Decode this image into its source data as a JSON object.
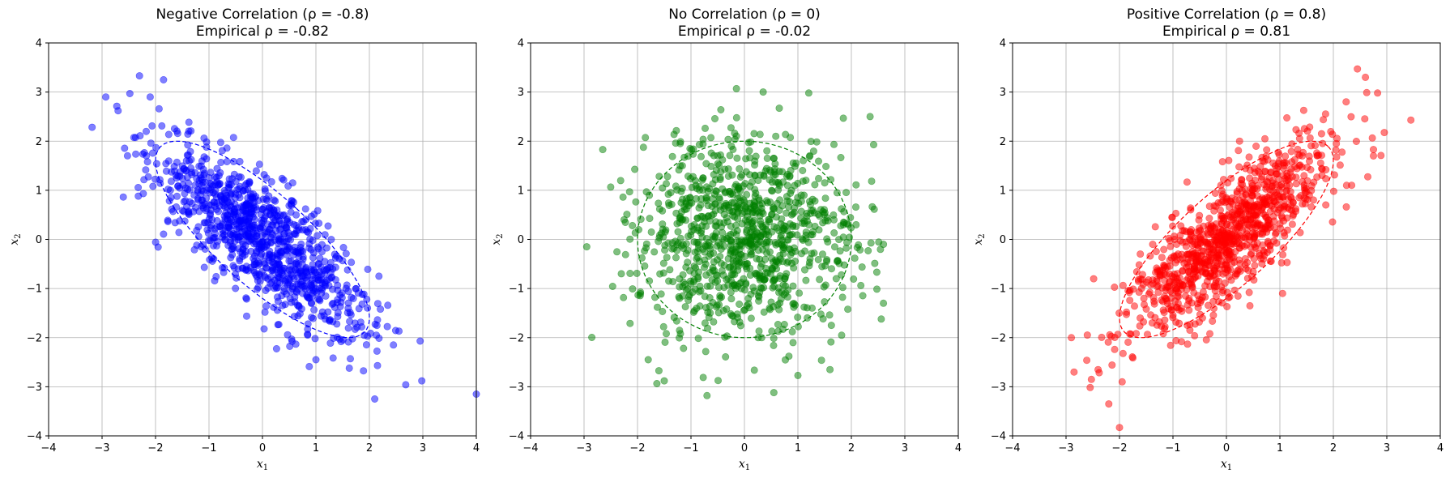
{
  "chart_data": [
    {
      "type": "scatter",
      "title": "Negative Correlation (ρ = -0.8)",
      "subtitle": "Empirical ρ = -0.82",
      "xlabel": "x1",
      "ylabel": "x2",
      "xlim": [
        -4,
        4
      ],
      "ylim": [
        -4,
        4
      ],
      "xticks": [
        "−4",
        "−3",
        "−2",
        "−1",
        "0",
        "1",
        "2",
        "3",
        "4"
      ],
      "yticks": [
        "−4",
        "−3",
        "−2",
        "−1",
        "0",
        "1",
        "2",
        "3",
        "4"
      ],
      "grid": true,
      "color": "#0000ff",
      "rho": -0.8,
      "n_points": 1000,
      "ellipse": {
        "rho": -0.8,
        "style": "dashed",
        "n_std": 2
      },
      "outliers": [
        [
          -2.3,
          3.33
        ],
        [
          -1.85,
          3.25
        ],
        [
          -2.1,
          2.9
        ],
        [
          -2.7,
          2.62
        ],
        [
          -2.15,
          1.58
        ],
        [
          2.95,
          -2.07
        ],
        [
          2.98,
          -2.88
        ],
        [
          2.68,
          -2.96
        ],
        [
          2.1,
          -3.25
        ],
        [
          4.0,
          -3.15
        ],
        [
          2.45,
          -2.15
        ],
        [
          1.0,
          -2.45
        ]
      ]
    },
    {
      "type": "scatter",
      "title": "No Correlation (ρ = 0)",
      "subtitle": "Empirical ρ = -0.02",
      "xlabel": "x1",
      "ylabel": "x2",
      "xlim": [
        -4,
        4
      ],
      "ylim": [
        -4,
        4
      ],
      "xticks": [
        "−4",
        "−3",
        "−2",
        "−1",
        "0",
        "1",
        "2",
        "3",
        "4"
      ],
      "yticks": [
        "−4",
        "−3",
        "−2",
        "−1",
        "0",
        "1",
        "2",
        "3",
        "4"
      ],
      "grid": true,
      "color": "#008000",
      "rho": 0.0,
      "n_points": 1000,
      "ellipse": {
        "rho": 0.0,
        "style": "dashed",
        "n_std": 2
      },
      "outliers": [
        [
          -0.15,
          3.07
        ],
        [
          0.35,
          3.0
        ],
        [
          -2.65,
          1.83
        ],
        [
          2.35,
          2.5
        ],
        [
          -1.5,
          -2.88
        ],
        [
          -0.7,
          -3.18
        ],
        [
          0.55,
          -3.12
        ],
        [
          1.0,
          -2.77
        ],
        [
          1.6,
          -2.65
        ],
        [
          -1.8,
          -2.45
        ],
        [
          -2.95,
          -0.15
        ],
        [
          2.6,
          -1.3
        ],
        [
          2.6,
          -0.1
        ]
      ]
    },
    {
      "type": "scatter",
      "title": "Positive Correlation (ρ = 0.8)",
      "subtitle": "Empirical ρ = 0.81",
      "xlabel": "x1",
      "ylabel": "x2",
      "xlim": [
        -4,
        4
      ],
      "ylim": [
        -4,
        4
      ],
      "xticks": [
        "−4",
        "−3",
        "−2",
        "−1",
        "0",
        "1",
        "2",
        "3",
        "4"
      ],
      "yticks": [
        "−4",
        "−3",
        "−2",
        "−1",
        "0",
        "1",
        "2",
        "3",
        "4"
      ],
      "grid": true,
      "color": "#ff0000",
      "rho": 0.8,
      "n_points": 1000,
      "ellipse": {
        "rho": 0.8,
        "style": "dashed",
        "n_std": 2
      },
      "outliers": [
        [
          2.45,
          3.47
        ],
        [
          2.6,
          3.3
        ],
        [
          3.45,
          2.43
        ],
        [
          2.75,
          1.83
        ],
        [
          2.75,
          1.7
        ],
        [
          -2.0,
          -3.83
        ],
        [
          -2.2,
          -3.35
        ],
        [
          -2.9,
          -2.0
        ],
        [
          -2.85,
          -2.7
        ],
        [
          -2.4,
          -2.65
        ],
        [
          -1.95,
          -2.9
        ],
        [
          1.05,
          -1.1
        ]
      ]
    }
  ]
}
